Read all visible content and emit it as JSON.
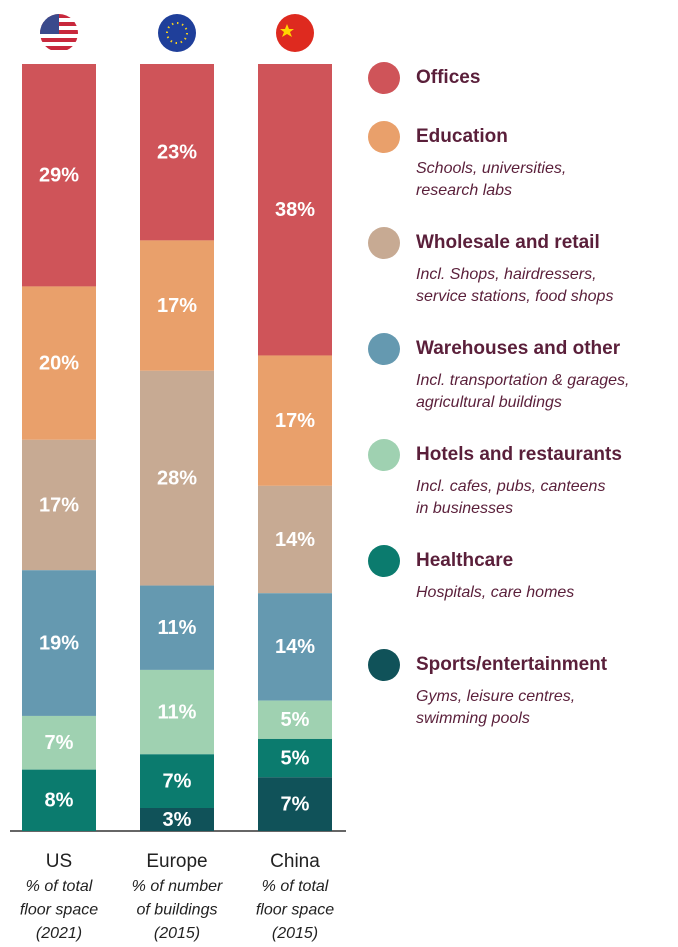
{
  "chart_data": {
    "type": "stacked_bar",
    "categories": [
      "US",
      "Europe",
      "China"
    ],
    "category_notes": [
      [
        "% of total",
        "floor space",
        "(2021)"
      ],
      [
        "% of number",
        "of buildings",
        "(2015)"
      ],
      [
        "% of total",
        "floor space",
        "(2015)"
      ]
    ],
    "ylim": [
      0,
      100
    ],
    "series": [
      {
        "name": "Offices",
        "description": [],
        "color": "#cf5459",
        "values": [
          29,
          23,
          38
        ],
        "value_labels": [
          "29%",
          "23%",
          "38%"
        ]
      },
      {
        "name": "Education",
        "description": [
          "Schools, universities,",
          "research labs"
        ],
        "color": "#e9a06b",
        "values": [
          20,
          17,
          17
        ],
        "value_labels": [
          "20%",
          "17%",
          "17%"
        ]
      },
      {
        "name": "Wholesale and retail",
        "description": [
          "Incl. Shops, hairdressers,",
          "service stations, food shops"
        ],
        "color": "#c7aa93",
        "values": [
          17,
          28,
          14
        ],
        "value_labels": [
          "17%",
          "28%",
          "14%"
        ]
      },
      {
        "name": "Warehouses and other",
        "description": [
          "Incl. transportation & garages,",
          "agricultural buildings"
        ],
        "color": "#6599b0",
        "values": [
          19,
          11,
          14
        ],
        "value_labels": [
          "19%",
          "11%",
          "14%"
        ]
      },
      {
        "name": "Hotels and restaurants",
        "description": [
          "Incl. cafes, pubs, canteens",
          "in businesses"
        ],
        "color": "#9fd1b1",
        "values": [
          7,
          11,
          5
        ],
        "value_labels": [
          "7%",
          "11%",
          "5%"
        ]
      },
      {
        "name": "Healthcare",
        "description": [
          "Hospitals, care homes"
        ],
        "color": "#0b7b6e",
        "values": [
          8,
          7,
          5
        ],
        "value_labels": [
          "8%",
          "7%",
          "5%"
        ]
      },
      {
        "name": "Sports/entertainment",
        "description": [
          "Gyms, leisure centres,",
          "swimming pools"
        ],
        "color": "#105259",
        "values": [
          null,
          3,
          7
        ],
        "value_labels": [
          null,
          "3%",
          "7%"
        ]
      }
    ]
  }
}
